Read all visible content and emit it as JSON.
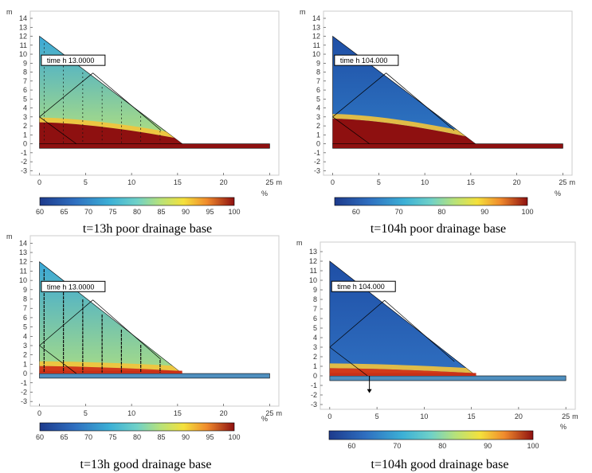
{
  "chart_data": [
    {
      "type": "heatmap",
      "time_label": "time h 13.0000",
      "caption": "t=13h  poor drainage base",
      "x_axis_unit": "m",
      "y_axis_unit": "m",
      "colorbar_unit": "%",
      "xticks": [
        0,
        5,
        10,
        15,
        20,
        25
      ],
      "yticks": [
        -3,
        -2,
        -1,
        0,
        1,
        2,
        3,
        4,
        5,
        6,
        7,
        8,
        9,
        10,
        11,
        12,
        13,
        14
      ],
      "colorbar_ticks": [
        60,
        65,
        70,
        75,
        80,
        85,
        90,
        95,
        100
      ],
      "xlim": [
        -1,
        26
      ],
      "ylim": [
        -3.5,
        14.8
      ],
      "colorbar_range": [
        60,
        100
      ],
      "embankment": {
        "crest": [
          0,
          12
        ],
        "toe": [
          15.5,
          0
        ],
        "base_length": 25,
        "base_thickness": 0.5
      },
      "saturated_zone_top_at_x0": 2.4,
      "saturated_zone_top_at_x15": 0.6,
      "field_arrows": true
    },
    {
      "type": "heatmap",
      "time_label": "time h 104.000",
      "caption": "t=104h  poor drainage base",
      "x_axis_unit": "m",
      "y_axis_unit": "m",
      "colorbar_unit": "%",
      "xticks": [
        0,
        5,
        10,
        15,
        20,
        25
      ],
      "yticks": [
        -3,
        -2,
        -1,
        0,
        1,
        2,
        3,
        4,
        5,
        6,
        7,
        8,
        9,
        10,
        11,
        12,
        13,
        14
      ],
      "colorbar_ticks": [
        60,
        70,
        80,
        90,
        100
      ],
      "xlim": [
        -1,
        26
      ],
      "ylim": [
        -3.5,
        14.8
      ],
      "colorbar_range": [
        55,
        100
      ],
      "embankment": {
        "crest": [
          0,
          12
        ],
        "toe": [
          15.5,
          0
        ],
        "base_length": 25,
        "base_thickness": 0.5
      },
      "saturated_zone_top_at_x0": 2.8,
      "saturated_zone_top_at_x15": 0.7,
      "field_arrows": false
    },
    {
      "type": "heatmap",
      "time_label": "time h 13.0000",
      "caption": "t=13h  good drainage base",
      "x_axis_unit": "m",
      "y_axis_unit": "m",
      "colorbar_unit": "%",
      "xticks": [
        0,
        5,
        10,
        15,
        20,
        25
      ],
      "yticks": [
        -3,
        -2,
        -1,
        0,
        1,
        2,
        3,
        4,
        5,
        6,
        7,
        8,
        9,
        10,
        11,
        12,
        13,
        14
      ],
      "colorbar_ticks": [
        60,
        65,
        70,
        75,
        80,
        85,
        90,
        95,
        100
      ],
      "xlim": [
        -1,
        26
      ],
      "ylim": [
        -3.5,
        14.8
      ],
      "colorbar_range": [
        60,
        100
      ],
      "embankment": {
        "crest": [
          0,
          12
        ],
        "toe": [
          15.5,
          0
        ],
        "base_length": 25,
        "base_thickness": 0.5
      },
      "saturated_zone_top_at_x0": 0.8,
      "saturated_zone_top_at_x15": 0.3,
      "field_arrows": true
    },
    {
      "type": "heatmap",
      "time_label": "time h 104.000",
      "caption": "t=104h  good drainage base",
      "x_axis_unit": "m",
      "y_axis_unit": "m",
      "colorbar_unit": "%",
      "xticks": [
        0,
        5,
        10,
        15,
        20,
        25
      ],
      "yticks": [
        -3,
        -2,
        -1,
        0,
        1,
        2,
        3,
        4,
        5,
        6,
        7,
        8,
        9,
        10,
        11,
        12,
        13
      ],
      "colorbar_ticks": [
        60,
        70,
        80,
        90,
        100
      ],
      "xlim": [
        -1,
        26
      ],
      "ylim": [
        -3.5,
        14
      ],
      "colorbar_range": [
        55,
        100
      ],
      "embankment": {
        "crest": [
          0,
          12
        ],
        "toe": [
          15.5,
          0
        ],
        "base_length": 25,
        "base_thickness": 0.5
      },
      "saturated_zone_top_at_x0": 0.8,
      "saturated_zone_top_at_x15": 0.3,
      "field_arrows": false
    }
  ]
}
